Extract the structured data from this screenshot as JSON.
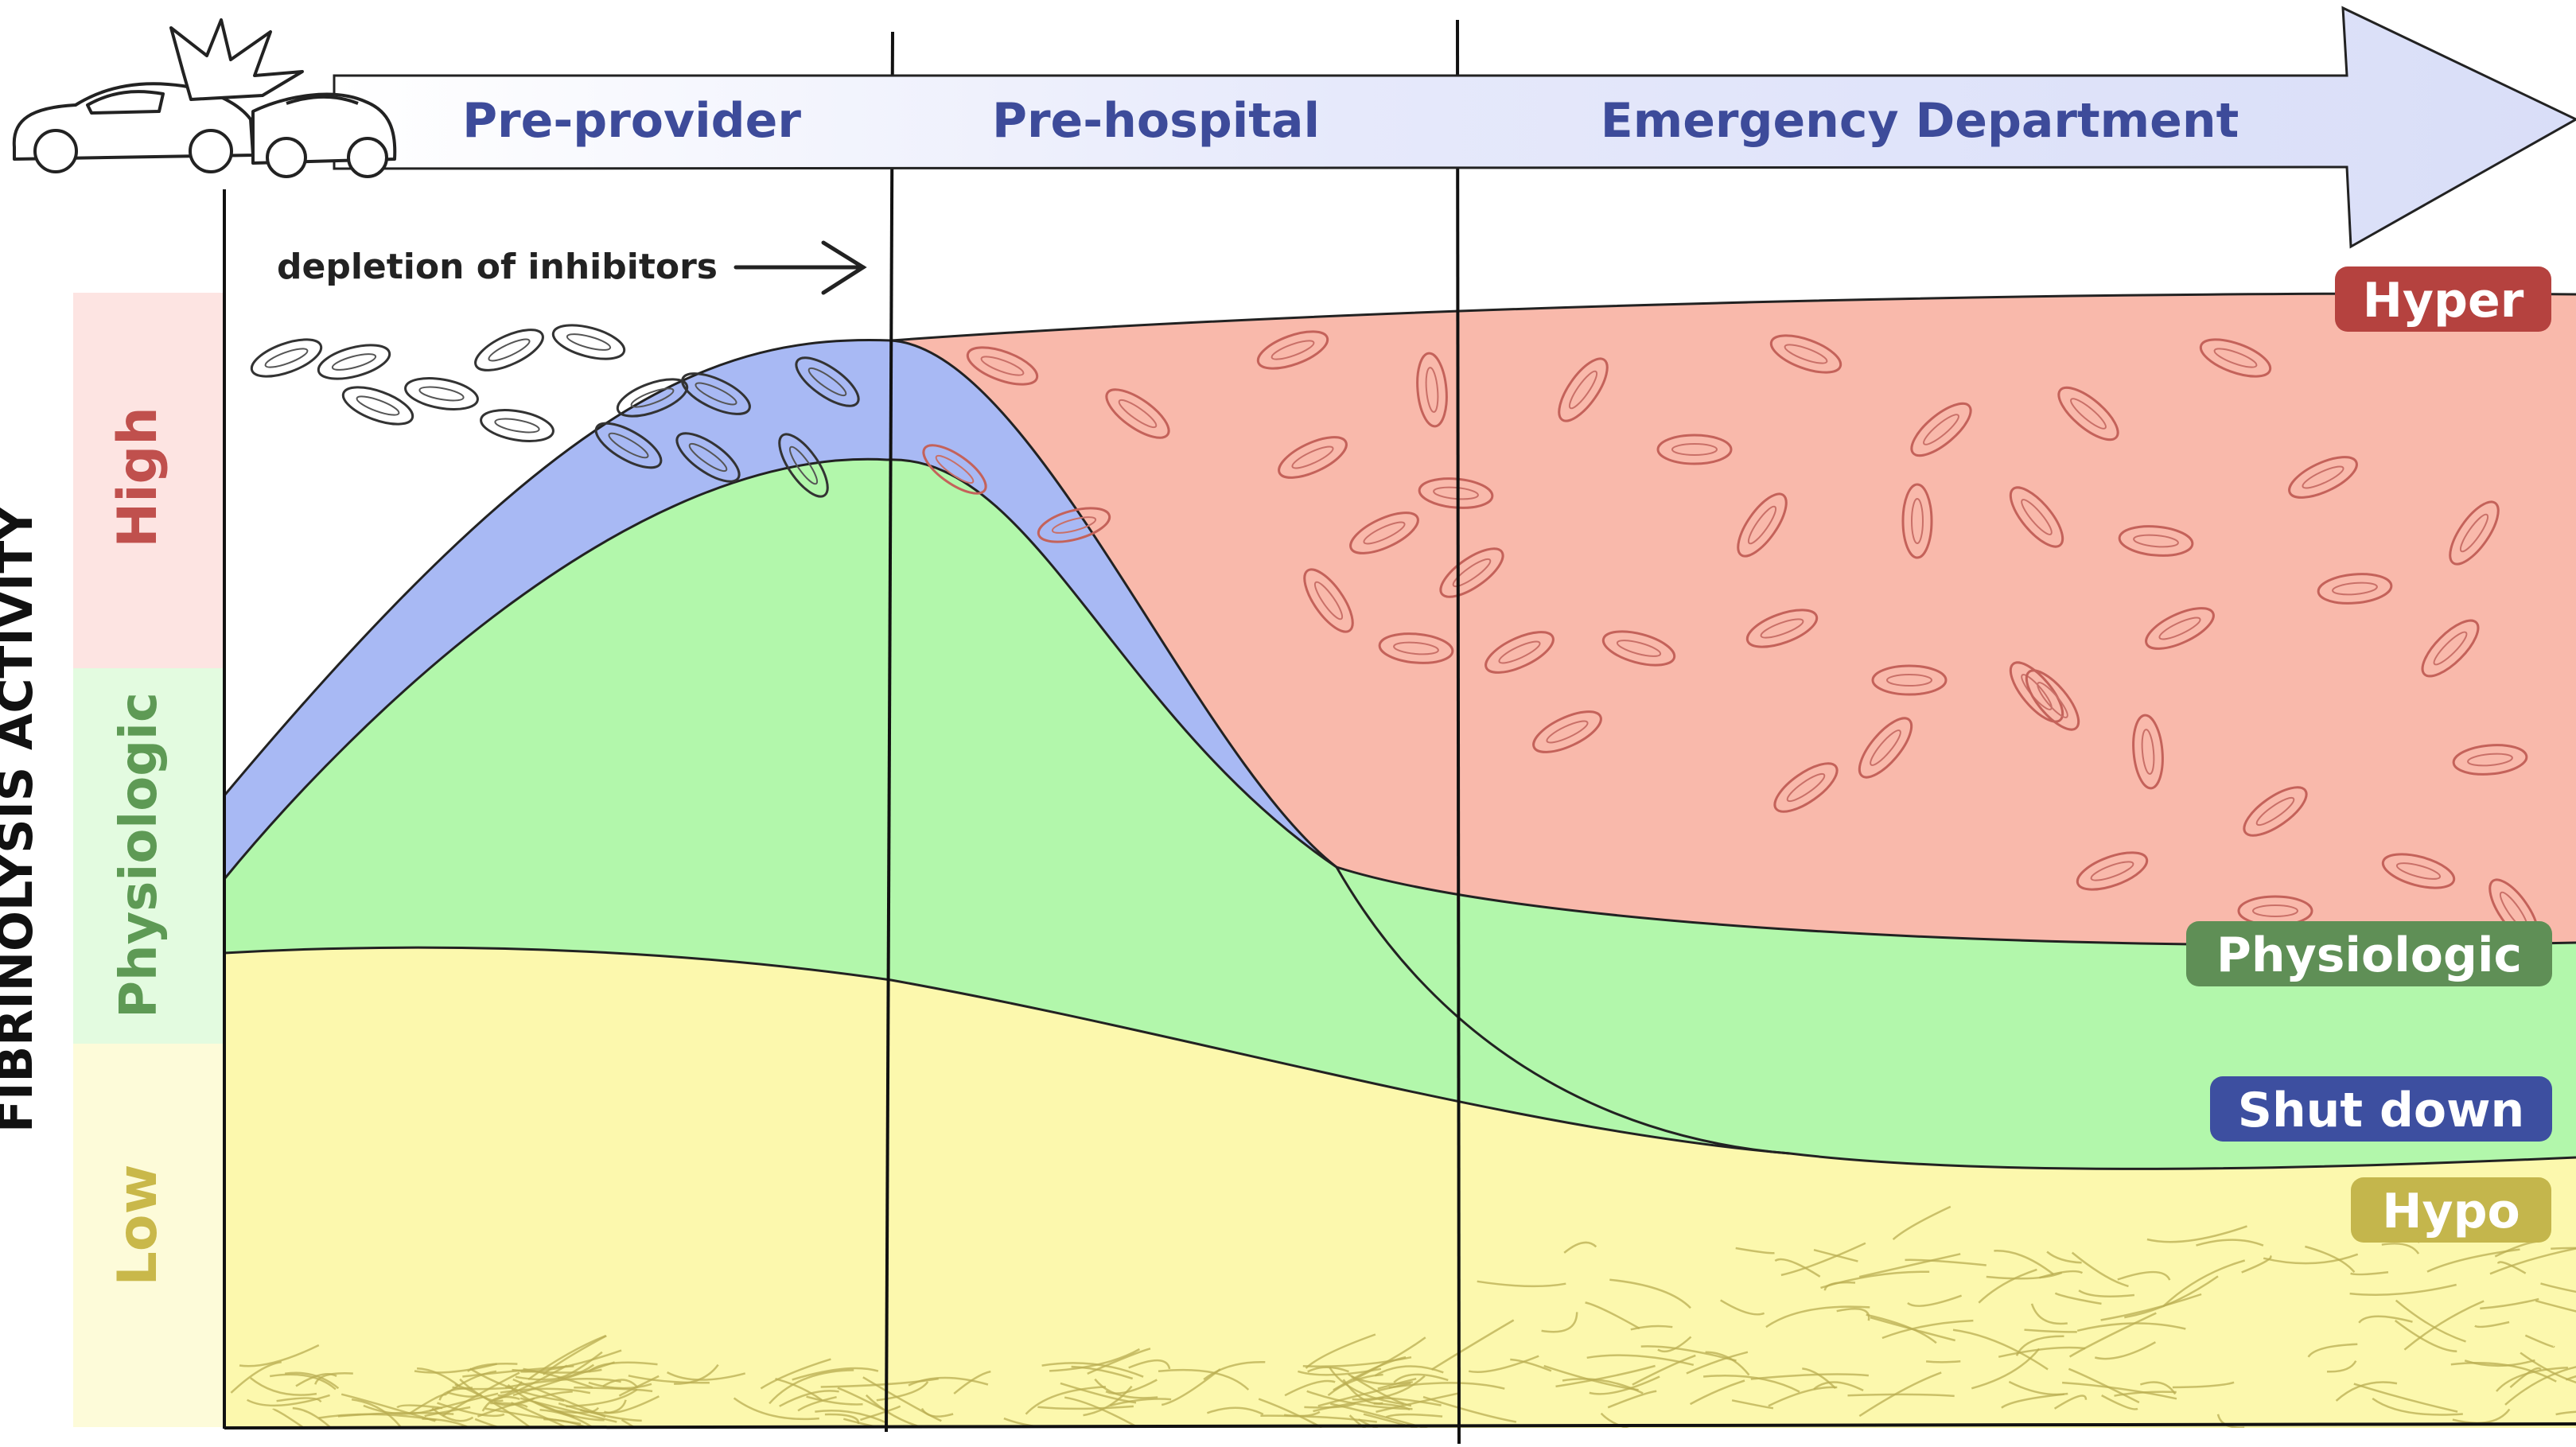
{
  "phases": [
    {
      "key": "pre_provider",
      "label": "Pre-provider"
    },
    {
      "key": "pre_hospital",
      "label": "Pre-hospital"
    },
    {
      "key": "emergency",
      "label": "Emergency Department"
    }
  ],
  "annotation": "depletion of inhibitors",
  "y_axis": {
    "title": "FIBRINOLYSIS ACTIVITY",
    "bands": [
      {
        "label": "High",
        "fill": "#fde4e2",
        "text": "#c0504d"
      },
      {
        "label": "Physiologic",
        "fill": "#e3fbe0",
        "text": "#5e9a55"
      },
      {
        "label": "Low",
        "fill": "#fdfbd9",
        "text": "#c9b84a"
      }
    ]
  },
  "legend": [
    {
      "label": "Hyper",
      "color": "#b5423f"
    },
    {
      "label": "Physiologic",
      "color": "#5f8f56"
    },
    {
      "label": "Shut down",
      "color": "#3d4fa0"
    },
    {
      "label": "Hypo",
      "color": "#c4b64c"
    }
  ],
  "colors": {
    "hyper": "#f9b9ab",
    "shutdown": "#a8b9f4",
    "physiologic": "#b2f7ab",
    "hypo": "#fcf8ad",
    "arrow": "#e2e6fa",
    "phase_text": "#3d4b9a"
  },
  "icons": [
    "car-crash-icon",
    "arrow-right-icon"
  ]
}
